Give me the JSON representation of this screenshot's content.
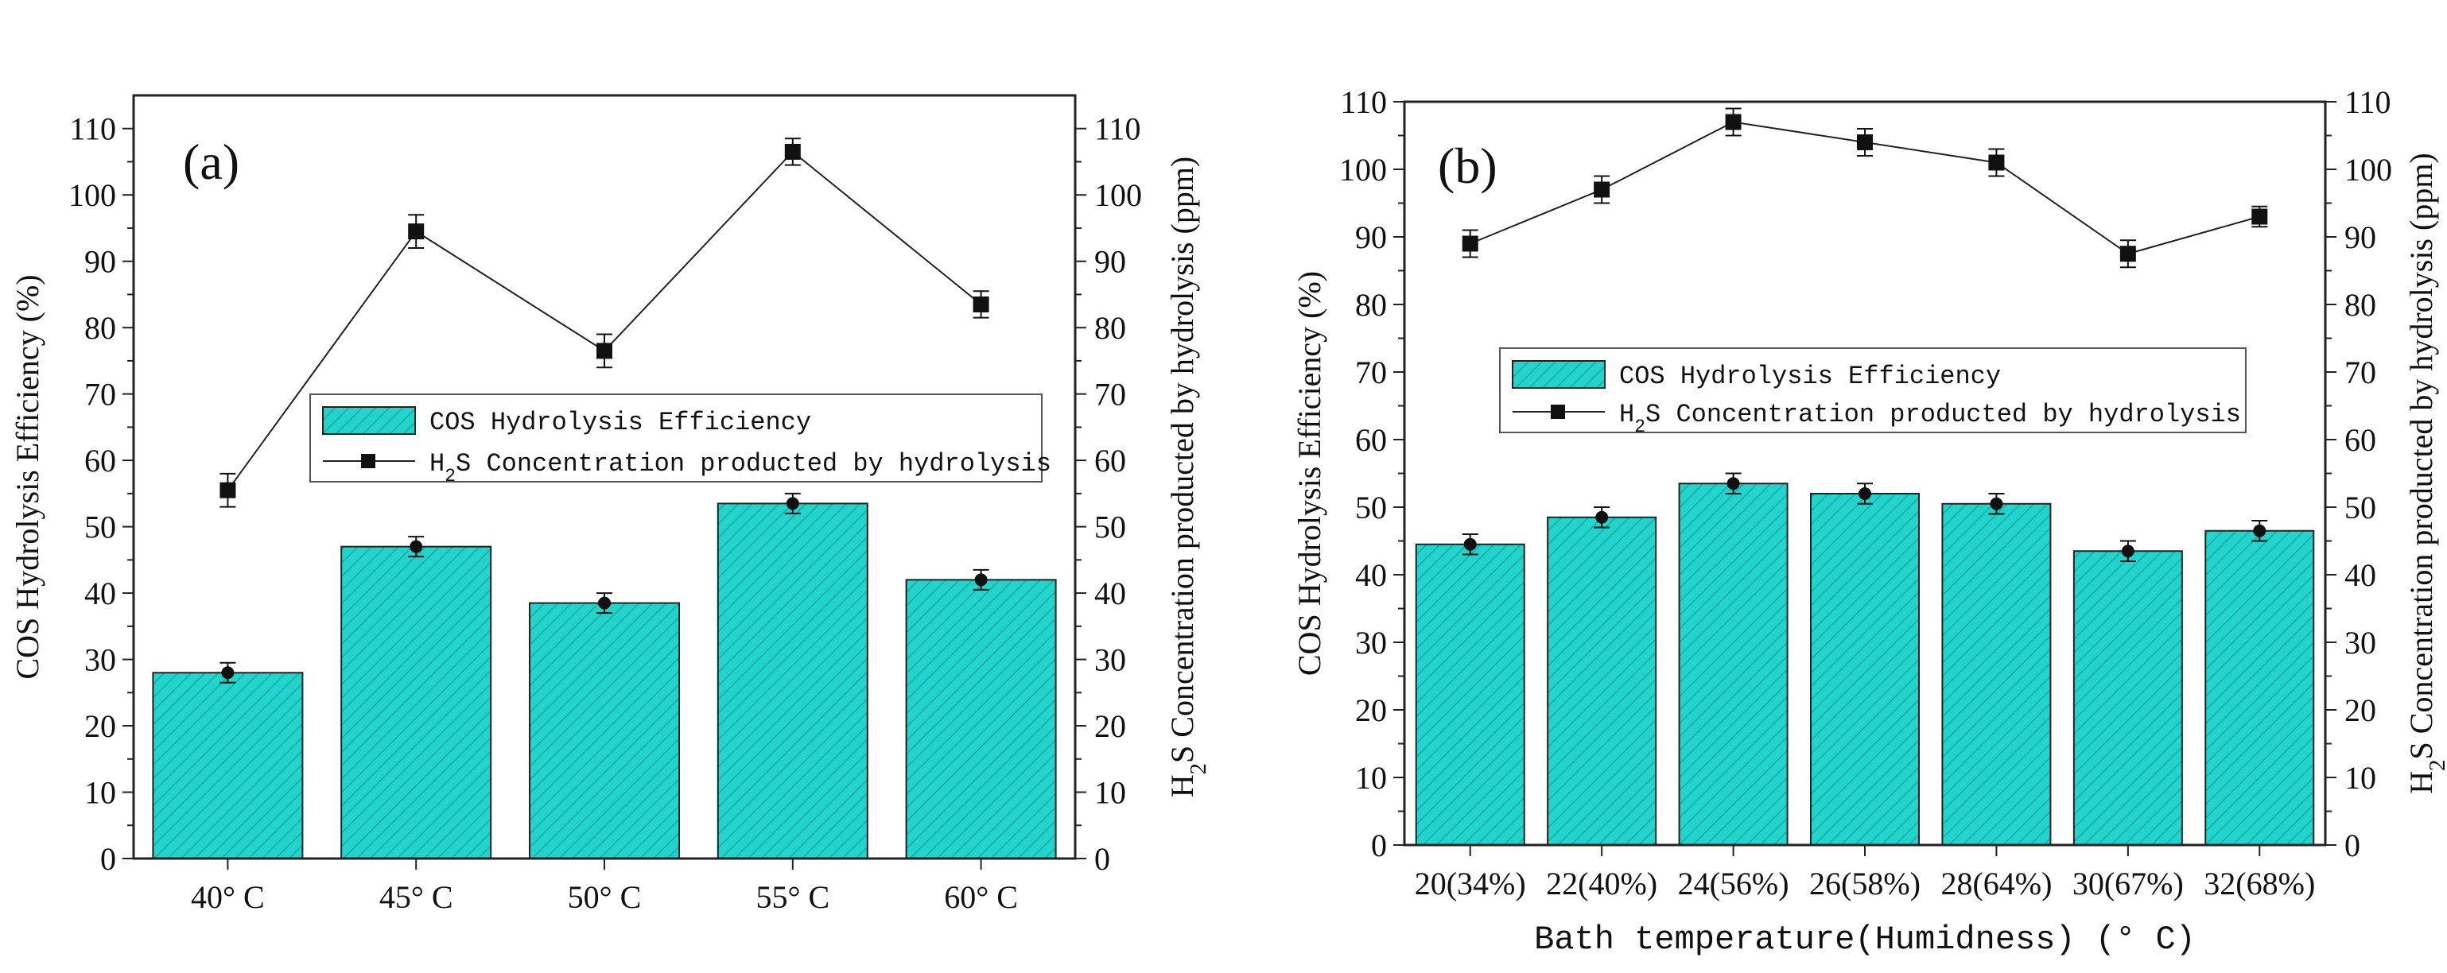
{
  "chart_data": [
    {
      "type": "bar",
      "panel_label": "(a)",
      "categories": [
        "40° C",
        "45° C",
        "50° C",
        "55° C",
        "60° C"
      ],
      "series": [
        {
          "name": "COS Hydrolysis Efficiency",
          "axis": "left",
          "kind": "bar",
          "values": [
            28,
            47,
            38.5,
            53.5,
            42
          ],
          "errors": [
            1.5,
            1.5,
            1.5,
            1.5,
            1.5
          ],
          "color": "#22d4cc"
        },
        {
          "name": "H₂S Concentration producted by hydrolysis",
          "axis": "right",
          "kind": "line",
          "values": [
            55.5,
            94.5,
            76.5,
            106.5,
            83.5
          ],
          "errors": [
            2.5,
            2.5,
            2.5,
            2,
            2
          ],
          "color": "#222222"
        }
      ],
      "xlabel": "",
      "ylabel": "COS Hydrolysis Efficiency (%)",
      "y2label": "H₂S Concentration producted by hydrolysis (ppm)",
      "ylim": [
        0,
        115
      ],
      "y2lim": [
        0,
        115
      ],
      "yticks": [
        0,
        10,
        20,
        30,
        40,
        50,
        60,
        70,
        80,
        90,
        100,
        110
      ],
      "legend": "center-right"
    },
    {
      "type": "bar",
      "panel_label": "(b)",
      "categories": [
        "20(34%)",
        "22(40%)",
        "24(56%)",
        "26(58%)",
        "28(64%)",
        "30(67%)",
        "32(68%)"
      ],
      "series": [
        {
          "name": "COS Hydrolysis Efficiency",
          "axis": "left",
          "kind": "bar",
          "values": [
            44.5,
            48.5,
            53.5,
            52,
            50.5,
            43.5,
            46.5
          ],
          "errors": [
            1.5,
            1.5,
            1.5,
            1.5,
            1.5,
            1.5,
            1.5
          ],
          "color": "#22d4cc"
        },
        {
          "name": "H₂S Concentration producted by hydrolysis",
          "axis": "right",
          "kind": "line",
          "values": [
            89,
            97,
            107,
            104,
            101,
            87.5,
            93
          ],
          "errors": [
            2,
            2,
            2,
            2,
            2,
            2,
            1.5
          ],
          "color": "#222222"
        }
      ],
      "xlabel": "Bath temperature(Humidness) (° C)",
      "ylabel": "COS Hydrolysis Efficiency (%)",
      "y2label": "H₂S Concentration producted by hydrolysis (ppm)",
      "ylim": [
        0,
        110
      ],
      "y2lim": [
        0,
        110
      ],
      "yticks": [
        0,
        10,
        20,
        30,
        40,
        50,
        60,
        70,
        80,
        90,
        100,
        110
      ],
      "legend": "upper-center"
    }
  ]
}
